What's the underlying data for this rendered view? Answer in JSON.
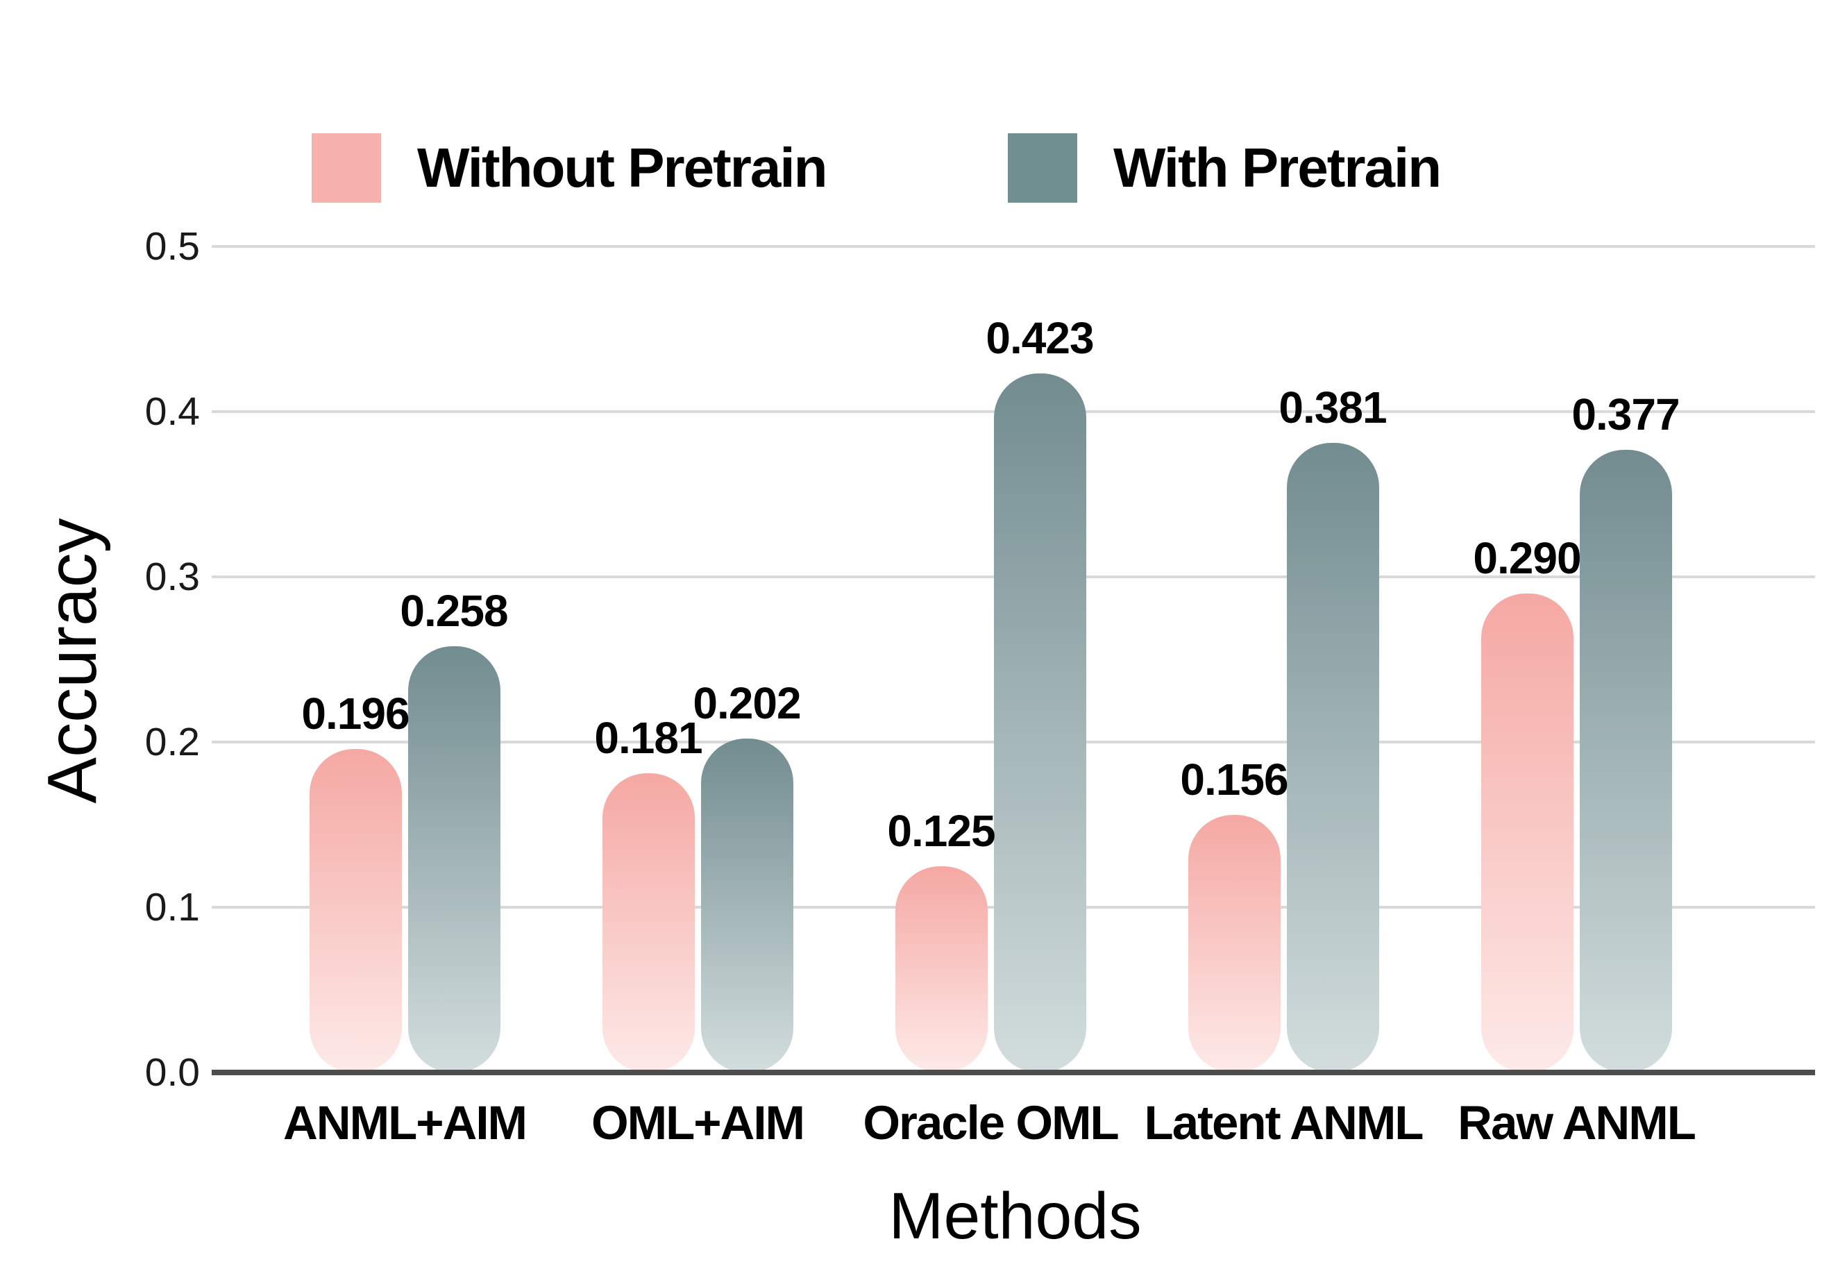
{
  "chart_data": {
    "type": "bar",
    "title": "",
    "categories": [
      "ANML+AIM",
      "OML+AIM",
      "Oracle OML",
      "Latent ANML",
      "Raw ANML"
    ],
    "series": [
      {
        "name": "Without Pretrain",
        "values": [
          0.196,
          0.181,
          0.125,
          0.156,
          0.29
        ],
        "value_labels": [
          "0.196",
          "0.181",
          "0.125",
          "0.156",
          "0.290"
        ],
        "bar_color_top": "#f5a8a3",
        "bar_color_bottom": "#fdeae8",
        "legend_color": "#f7b1ac"
      },
      {
        "name": "With Pretrain",
        "values": [
          0.258,
          0.202,
          0.423,
          0.381,
          0.377
        ],
        "value_labels": [
          "0.258",
          "0.202",
          "0.423",
          "0.381",
          "0.377"
        ],
        "bar_color_top": "#728c90",
        "bar_color_bottom": "#d3dddd",
        "legend_color": "#6f8f91"
      }
    ],
    "xlabel": "Methods",
    "ylabel": "Accuracy",
    "ylim": [
      0.0,
      0.5
    ],
    "yticks": [
      "0.0",
      "0.1",
      "0.2",
      "0.3",
      "0.4",
      "0.5"
    ],
    "grid": "horizontal",
    "legend_position": "top"
  },
  "legend": {
    "items": [
      {
        "label": "Without Pretrain"
      },
      {
        "label": "With Pretrain"
      }
    ]
  },
  "axes": {
    "y_title": "Accuracy",
    "x_title": "Methods"
  },
  "colors": {
    "gridline": "#d9d9d9",
    "axis_line": "#4d4d4d",
    "background": "#ffffff",
    "text": "#000000"
  }
}
